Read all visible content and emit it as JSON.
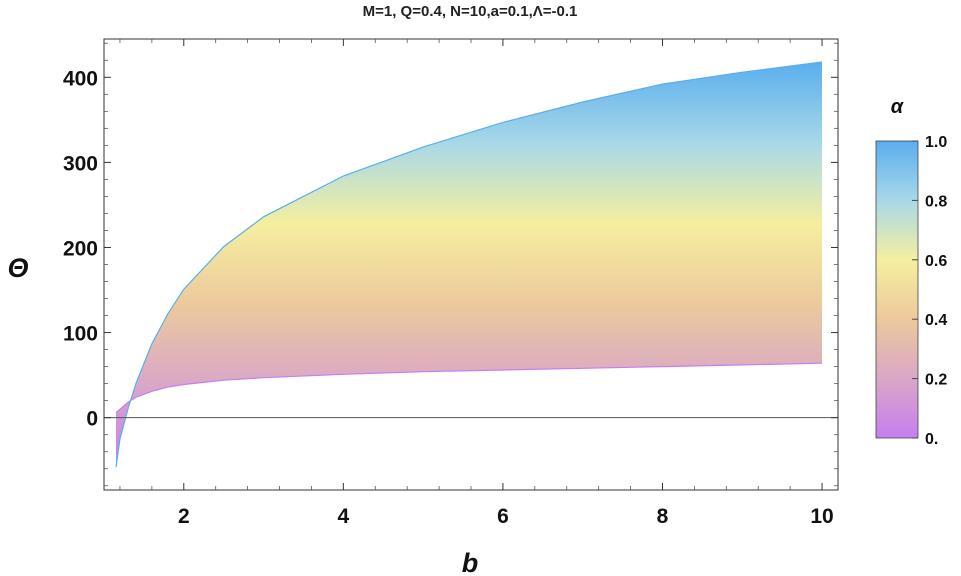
{
  "chart_data": {
    "type": "area",
    "title": "M=1, Q=0.4, N=10,a=0.1,Λ=-0.1",
    "xlabel": "b",
    "ylabel": "Θ",
    "xlim": [
      1.0,
      10.2
    ],
    "ylim": [
      -85,
      445
    ],
    "x_ticks": [
      2,
      4,
      6,
      8,
      10
    ],
    "x_tick_labels": [
      "2",
      "4",
      "6",
      "8",
      "10"
    ],
    "y_ticks": [
      0,
      100,
      200,
      300,
      400
    ],
    "y_tick_labels": [
      "0",
      "100",
      "200",
      "300",
      "400"
    ],
    "grid": false,
    "reference_line_y": 0,
    "series": [
      {
        "alpha": 0,
        "x": [
          1.15,
          1.2,
          1.3,
          1.4,
          1.6,
          1.8,
          2,
          2.5,
          3,
          4,
          5,
          6,
          7,
          8,
          9,
          10
        ],
        "values": [
          6,
          10,
          18,
          24,
          31,
          36,
          39,
          44,
          47,
          51,
          54,
          56,
          58,
          60,
          62,
          64
        ]
      },
      {
        "alpha": 1,
        "x": [
          1.15,
          1.2,
          1.3,
          1.4,
          1.6,
          1.8,
          2,
          2.5,
          3,
          4,
          5,
          6,
          7,
          8,
          9,
          10
        ],
        "values": [
          -58,
          -25,
          10,
          40,
          87,
          122,
          151,
          201,
          236,
          284,
          318,
          347,
          371,
          392,
          406,
          418
        ]
      }
    ],
    "colorbar": {
      "label": "α",
      "range": [
        0,
        1
      ],
      "ticks": [
        "0.",
        "0.2",
        "0.4",
        "0.6",
        "0.8",
        "1.0"
      ],
      "colors": [
        "#c67ef0",
        "#d9a7c7",
        "#ecc99d",
        "#f5ef9f",
        "#a8d8e8",
        "#5aaeee"
      ]
    }
  }
}
